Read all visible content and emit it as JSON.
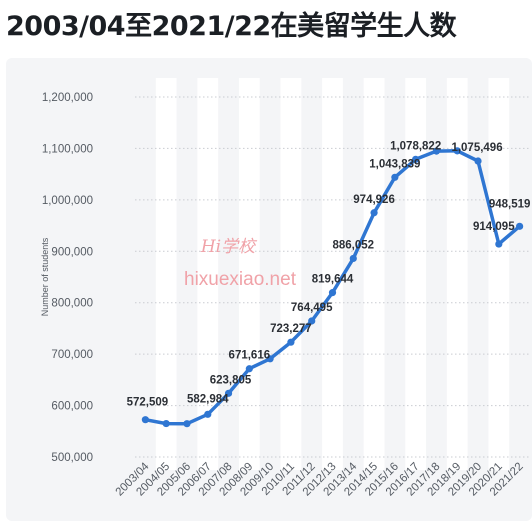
{
  "page": {
    "title": "2003/04至2021/22在美留学生人数"
  },
  "watermark": {
    "logo": "Hi学校",
    "text": "hixuexiao.net"
  },
  "colors": {
    "line": "#2f76d2",
    "grid": "#c9ccd1",
    "card_background": "#f4f5f7",
    "band": "#ffffff",
    "title": "#1b1f24"
  },
  "chart_data": {
    "type": "line",
    "title": "",
    "xlabel": "",
    "ylabel": "Number of students",
    "ylim": [
      500000,
      1200000
    ],
    "y_ticks": [
      500000,
      600000,
      700000,
      800000,
      900000,
      1000000,
      1100000,
      1200000
    ],
    "y_tick_labels": [
      "500,000",
      "600,000",
      "700,000",
      "800,000",
      "900,000",
      "1,000,000",
      "1,100,000",
      "1,200,000"
    ],
    "grid": "horizontal dotted",
    "legend": "none",
    "categories": [
      "2003/04",
      "2004/05",
      "2005/06",
      "2006/07",
      "2007/08",
      "2008/09",
      "2009/10",
      "2010/11",
      "2011/12",
      "2012/13",
      "2013/14",
      "2014/15",
      "2015/16",
      "2016/17",
      "2017/18",
      "2018/19",
      "2019/20",
      "2020/21",
      "2021/22"
    ],
    "series": [
      {
        "values": [
          572509,
          565000,
          564766,
          582984,
          623805,
          671616,
          690923,
          723277,
          764495,
          819644,
          886052,
          974926,
          1043839,
          1078822,
          1094792,
          1095299,
          1075496,
          914095,
          948519
        ]
      }
    ],
    "data_labels": [
      {
        "index": 0,
        "text": "572,509"
      },
      {
        "index": 3,
        "text": "582,984"
      },
      {
        "index": 4,
        "text": "623,805"
      },
      {
        "index": 5,
        "text": "671,616"
      },
      {
        "index": 7,
        "text": "723,277"
      },
      {
        "index": 8,
        "text": "764,495"
      },
      {
        "index": 9,
        "text": "819,644"
      },
      {
        "index": 10,
        "text": "886,052"
      },
      {
        "index": 11,
        "text": "974,926"
      },
      {
        "index": 12,
        "text": "1,043,839"
      },
      {
        "index": 13,
        "text": "1,078,822"
      },
      {
        "index": 16,
        "text": "1,075,496"
      },
      {
        "index": 17,
        "text": "914,095"
      },
      {
        "index": 18,
        "text": "948,519"
      }
    ]
  }
}
